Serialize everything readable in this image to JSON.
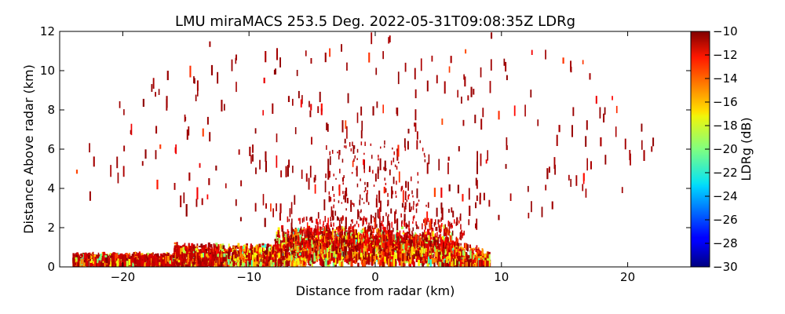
{
  "chart_data": {
    "type": "heatmap",
    "title": "LMU miraMACS 253.5 Deg. 2022-05-31T09:08:35Z  LDRg",
    "xlabel": "Distance from radar (km)",
    "ylabel": "Distance Above radar  (km)",
    "xlim": [
      -25,
      25
    ],
    "ylim": [
      0,
      12
    ],
    "xticks": [
      "−20",
      "−10",
      "0",
      "10",
      "20"
    ],
    "xtick_values": [
      -20,
      -10,
      0,
      10,
      20
    ],
    "yticks": [
      "0",
      "2",
      "4",
      "6",
      "8",
      "10",
      "12"
    ],
    "ytick_values": [
      0,
      2,
      4,
      6,
      8,
      10,
      12
    ],
    "colorbar": {
      "label": "LDRg (dB)",
      "range": [
        -30,
        -10
      ],
      "ticks": [
        "−30",
        "−28",
        "−26",
        "−24",
        "−22",
        "−20",
        "−18",
        "−16",
        "−14",
        "−12",
        "−10"
      ],
      "tick_values": [
        -30,
        -28,
        -26,
        -24,
        -22,
        -20,
        -18,
        -16,
        -14,
        -12,
        -10
      ],
      "colormap": "jet"
    },
    "grid": false,
    "scan_azimuth_deg": 253.5,
    "dominant_value_db": -10.5,
    "near_surface_layer": {
      "x_range_km": [
        -24,
        9
      ],
      "y_top_km": 2,
      "values_db": [
        -20,
        -10
      ]
    }
  }
}
